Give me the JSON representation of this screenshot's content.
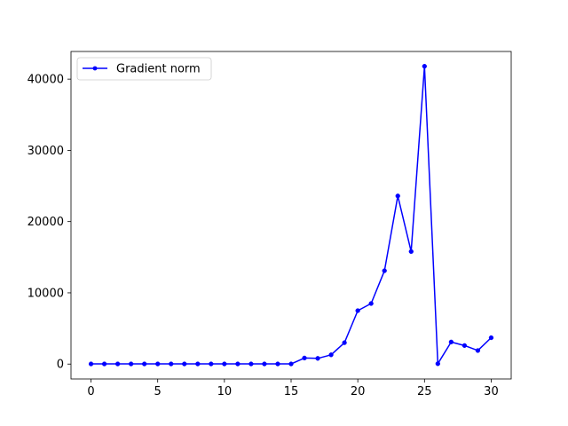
{
  "chart_data": {
    "type": "line",
    "title": "",
    "xlabel": "",
    "ylabel": "",
    "xlim": [
      -1.5,
      31.5
    ],
    "ylim": [
      -2090,
      43880
    ],
    "x_ticks": [
      0,
      5,
      10,
      15,
      20,
      25,
      30
    ],
    "y_ticks": [
      0,
      10000,
      20000,
      30000,
      40000
    ],
    "grid": false,
    "legend_position": "top-left",
    "series": [
      {
        "name": "Gradient norm",
        "color": "#0000ff",
        "marker": "circle",
        "x": [
          0,
          1,
          2,
          3,
          4,
          5,
          6,
          7,
          8,
          9,
          10,
          11,
          12,
          13,
          14,
          15,
          16,
          17,
          18,
          19,
          20,
          21,
          22,
          23,
          24,
          25,
          26,
          27,
          28,
          29,
          30
        ],
        "y": [
          20,
          20,
          20,
          20,
          20,
          20,
          20,
          20,
          20,
          20,
          20,
          20,
          20,
          20,
          20,
          20,
          850,
          800,
          1300,
          3000,
          7500,
          8500,
          13100,
          23600,
          15800,
          41800,
          50,
          3100,
          2600,
          1900,
          3700
        ]
      }
    ]
  }
}
